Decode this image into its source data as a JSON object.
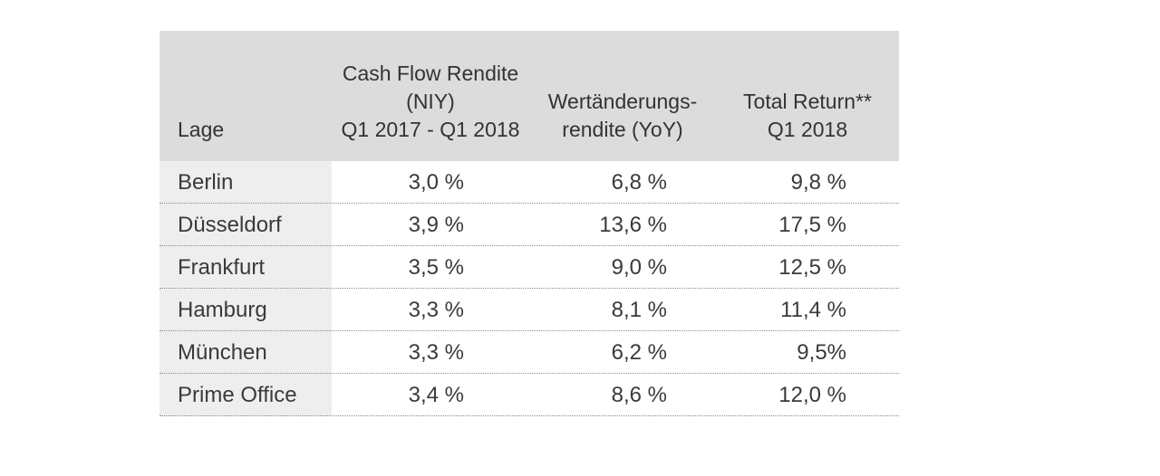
{
  "chart_data": {
    "type": "table",
    "columns": [
      "Lage",
      "Cash Flow Rendite\n(NIY)\nQ1 2017 - Q1 2018",
      "Wertänderungs-\nrendite (YoY)",
      "Total Return**\nQ1 2018"
    ],
    "rows": [
      [
        "Berlin",
        "3,0 %",
        "6,8 %",
        "9,8 %"
      ],
      [
        "Düsseldorf",
        "3,9 %",
        "13,6 %",
        "17,5 %"
      ],
      [
        "Frankfurt",
        "3,5 %",
        "9,0 %",
        "12,5 %"
      ],
      [
        "Hamburg",
        "3,3 %",
        "8,1 %",
        "11,4 %"
      ],
      [
        "München",
        "3,3 %",
        "6,2 %",
        "9,5%"
      ],
      [
        "Prime Office",
        "3,4 %",
        "8,6 %",
        "12,0 %"
      ]
    ]
  }
}
